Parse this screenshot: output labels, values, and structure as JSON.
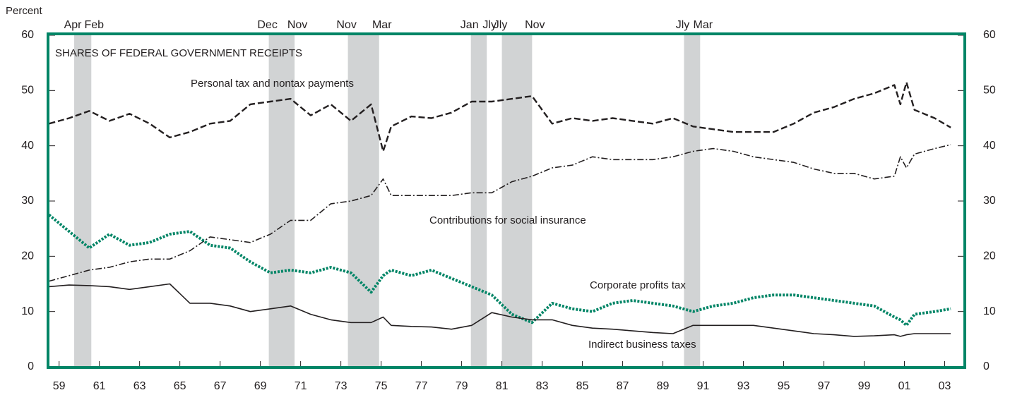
{
  "chart_data": {
    "type": "line",
    "title": "SHARES OF FEDERAL GOVERNMENT RECEIPTS",
    "y_label": "Percent",
    "xlim": [
      1958.95,
      2004.5
    ],
    "ylim": [
      0,
      60
    ],
    "yticks": [
      0,
      10,
      20,
      30,
      40,
      50,
      60
    ],
    "xticks": [
      {
        "value": 1959.5,
        "label": "59"
      },
      {
        "value": 1961.5,
        "label": "61"
      },
      {
        "value": 1963.5,
        "label": "63"
      },
      {
        "value": 1965.5,
        "label": "65"
      },
      {
        "value": 1967.5,
        "label": "67"
      },
      {
        "value": 1969.5,
        "label": "69"
      },
      {
        "value": 1971.5,
        "label": "71"
      },
      {
        "value": 1973.5,
        "label": "73"
      },
      {
        "value": 1975.5,
        "label": "75"
      },
      {
        "value": 1977.5,
        "label": "77"
      },
      {
        "value": 1979.5,
        "label": "79"
      },
      {
        "value": 1981.5,
        "label": "81"
      },
      {
        "value": 1983.5,
        "label": "83"
      },
      {
        "value": 1985.5,
        "label": "85"
      },
      {
        "value": 1987.5,
        "label": "87"
      },
      {
        "value": 1989.5,
        "label": "89"
      },
      {
        "value": 1991.5,
        "label": "91"
      },
      {
        "value": 1993.5,
        "label": "93"
      },
      {
        "value": 1995.5,
        "label": "95"
      },
      {
        "value": 1997.5,
        "label": "97"
      },
      {
        "value": 1999.5,
        "label": "99"
      },
      {
        "value": 2001.5,
        "label": "01"
      },
      {
        "value": 2003.5,
        "label": "03"
      }
    ],
    "recessions": [
      {
        "start": 1960.25,
        "end": 1961.1,
        "start_label": "Apr",
        "end_label": "Feb"
      },
      {
        "start": 1969.92,
        "end": 1971.2,
        "start_label": "Dec",
        "end_label": "Nov"
      },
      {
        "start": 1973.85,
        "end": 1975.4,
        "start_label": "Nov",
        "end_label": "Mar"
      },
      {
        "start": 1979.96,
        "end": 1980.75,
        "start_label": "Jan",
        "end_label": "Jly"
      },
      {
        "start": 1981.5,
        "end": 1983.0,
        "start_label": "Jly",
        "end_label": "Nov"
      },
      {
        "start": 1990.55,
        "end": 1991.35,
        "start_label": "Jly",
        "end_label": "Mar"
      }
    ],
    "x": [
      1959,
      1960,
      1961,
      1962,
      1963,
      1964,
      1965,
      1966,
      1967,
      1968,
      1969,
      1970,
      1971,
      1972,
      1973,
      1974,
      1975.0,
      1975.6,
      1976,
      1977,
      1978,
      1979,
      1980,
      1981,
      1982,
      1983,
      1984,
      1985,
      1986,
      1987,
      1988,
      1989,
      1990,
      1991,
      1992,
      1993,
      1994,
      1995,
      1996,
      1997,
      1998,
      1999,
      2000,
      2001,
      2001.3,
      2001.6,
      2002,
      2003,
      2003.8
    ],
    "series": [
      {
        "name": "Personal tax and nontax payments",
        "color": "#231f20",
        "values": [
          44,
          45,
          46.3,
          44.5,
          45.8,
          44,
          41.5,
          42.5,
          44,
          44.5,
          47.5,
          48,
          48.5,
          45.5,
          47.5,
          44.5,
          47.5,
          39,
          43.5,
          45.3,
          45,
          46,
          48,
          48,
          48.5,
          49,
          44,
          45,
          44.5,
          45,
          44.5,
          44,
          45,
          43.5,
          43,
          42.5,
          42.5,
          42.5,
          44,
          46,
          47,
          48.5,
          49.5,
          51,
          47.5,
          51.5,
          46.5,
          45,
          43.3
        ]
      },
      {
        "name": "Contributions for social insurance",
        "color": "#231f20",
        "values": [
          15.5,
          16.5,
          17.5,
          18,
          19,
          19.5,
          19.5,
          21,
          23.5,
          23,
          22.5,
          24,
          26.5,
          26.5,
          29.5,
          30,
          31,
          34,
          31,
          31,
          31,
          31,
          31.5,
          31.5,
          33.5,
          34.5,
          36,
          36.5,
          38,
          37.5,
          37.5,
          37.5,
          38,
          39,
          39.5,
          39,
          38,
          37.5,
          37,
          35.8,
          35,
          35,
          34,
          34.5,
          38,
          36,
          38.5,
          39.5,
          40.2
        ]
      },
      {
        "name": "Corporate profits tax",
        "color": "#008566",
        "values": [
          27.5,
          24.5,
          21.5,
          24,
          22,
          22.5,
          24,
          24.5,
          22,
          21.5,
          19,
          17,
          17.5,
          17,
          18,
          17,
          13.5,
          16.5,
          17.5,
          16.5,
          17.5,
          16,
          14.5,
          13,
          9.5,
          8,
          11.5,
          10.5,
          10,
          11.5,
          12,
          11.5,
          11,
          10,
          11,
          11.5,
          12.5,
          13,
          13,
          12.5,
          12,
          11.5,
          11,
          9,
          8.5,
          7.5,
          9.5,
          10,
          10.5
        ]
      },
      {
        "name": "Indirect business taxes",
        "color": "#231f20",
        "values": [
          14.5,
          14.8,
          14.7,
          14.5,
          14,
          14.5,
          15,
          11.5,
          11.5,
          11,
          10,
          10.5,
          11,
          9.5,
          8.5,
          8,
          8,
          9,
          7.5,
          7.3,
          7.2,
          6.8,
          7.5,
          9.8,
          9,
          8.5,
          8.5,
          7.5,
          7,
          6.8,
          6.5,
          6.2,
          6,
          7.5,
          7.5,
          7.5,
          7.5,
          7,
          6.5,
          6,
          5.8,
          5.5,
          5.6,
          5.8,
          5.5,
          5.8,
          6,
          6,
          6
        ]
      }
    ],
    "frame_color": "#008566",
    "recession_color": "#d1d3d4"
  }
}
